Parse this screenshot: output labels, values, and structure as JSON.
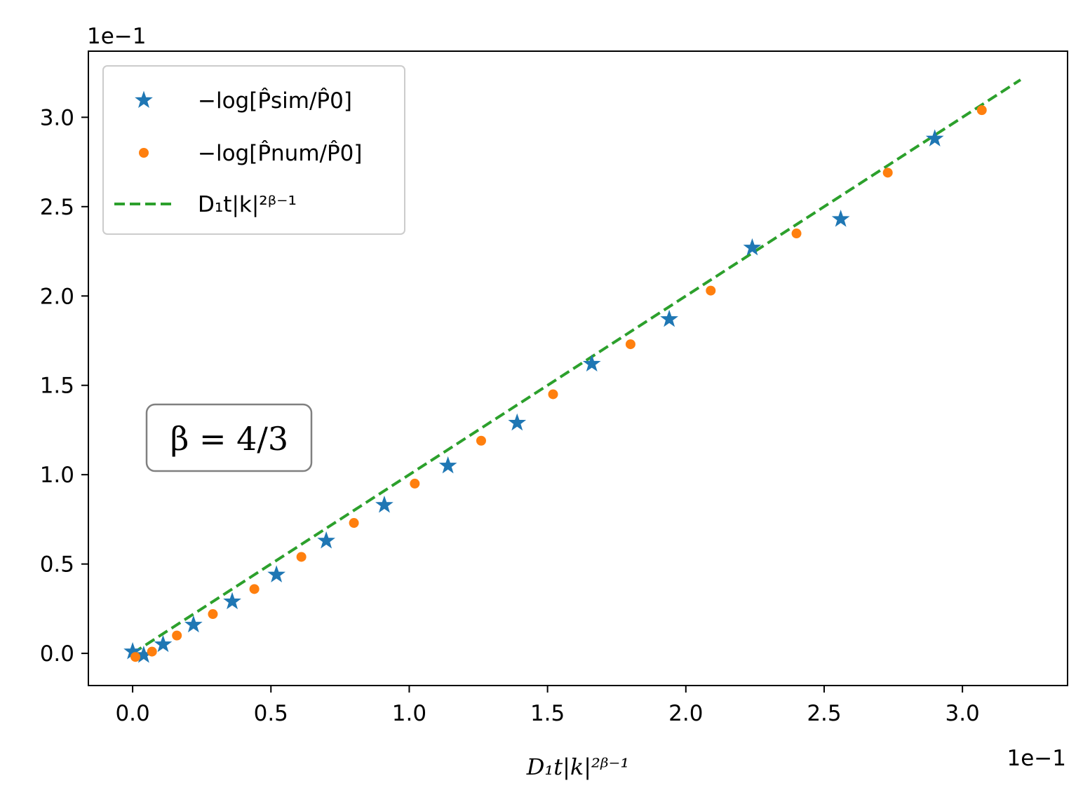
{
  "chart_data": {
    "type": "scatter",
    "xlabel": "D₁t|k|²ᵝ⁻¹",
    "ylabel": "",
    "x_offset_label": "1e−1",
    "y_offset_label": "1e−1",
    "xlim": [
      -0.16,
      3.38
    ],
    "ylim": [
      -0.18,
      3.37
    ],
    "x_ticks": [
      0.0,
      0.5,
      1.0,
      1.5,
      2.0,
      2.5,
      3.0
    ],
    "y_ticks": [
      0.0,
      0.5,
      1.0,
      1.5,
      2.0,
      2.5,
      3.0
    ],
    "x_tick_labels": [
      "0.0",
      "0.5",
      "1.0",
      "1.5",
      "2.0",
      "2.5",
      "3.0"
    ],
    "y_tick_labels": [
      "0.0",
      "0.5",
      "1.0",
      "1.5",
      "2.0",
      "2.5",
      "3.0"
    ],
    "grid": false,
    "legend_position": "top-left",
    "annotation": "β = 4/3",
    "series": [
      {
        "name": "−log[P̂sim/P̂0]",
        "color": "#1f77b4",
        "marker": "star",
        "x": [
          0.0,
          0.04,
          0.11,
          0.22,
          0.36,
          0.52,
          0.7,
          0.91,
          1.14,
          1.39,
          1.66,
          1.94,
          2.24,
          2.56,
          2.9
        ],
        "y": [
          0.01,
          -0.01,
          0.05,
          0.16,
          0.29,
          0.44,
          0.63,
          0.83,
          1.05,
          1.29,
          1.62,
          1.87,
          2.27,
          2.43,
          2.88
        ]
      },
      {
        "name": "−log[P̂num/P̂0]",
        "color": "#ff7f0e",
        "marker": "dot",
        "x": [
          0.01,
          0.07,
          0.16,
          0.29,
          0.44,
          0.61,
          0.8,
          1.02,
          1.26,
          1.52,
          1.8,
          2.09,
          2.4,
          2.73,
          3.07
        ],
        "y": [
          -0.02,
          0.01,
          0.1,
          0.22,
          0.36,
          0.54,
          0.73,
          0.95,
          1.19,
          1.45,
          1.73,
          2.03,
          2.35,
          2.69,
          3.04
        ]
      },
      {
        "name": "D₁t|k|²ᵝ⁻¹",
        "color": "#2ca02c",
        "marker": "dashed-line",
        "x": [
          0.0,
          3.21
        ],
        "y": [
          0.0,
          3.21
        ]
      }
    ]
  }
}
